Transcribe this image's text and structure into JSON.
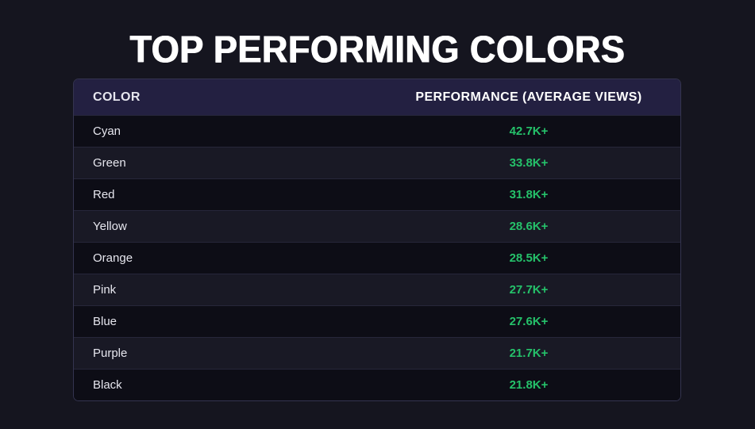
{
  "page": {
    "title": "TOP PERFORMING COLORS"
  },
  "table": {
    "columns": [
      {
        "label": "COLOR"
      },
      {
        "label": "PERFORMANCE (AVERAGE VIEWS)"
      }
    ],
    "rows": [
      {
        "color": "Cyan",
        "performance": "42.7K+"
      },
      {
        "color": "Green",
        "performance": "33.8K+"
      },
      {
        "color": "Red",
        "performance": "31.8K+"
      },
      {
        "color": "Yellow",
        "performance": "28.6K+"
      },
      {
        "color": "Orange",
        "performance": "28.5K+"
      },
      {
        "color": "Pink",
        "performance": "27.7K+"
      },
      {
        "color": "Blue",
        "performance": "27.6K+"
      },
      {
        "color": "Purple",
        "performance": "21.7K+"
      },
      {
        "color": "Black",
        "performance": "21.8K+"
      }
    ]
  },
  "colors": {
    "background": "#15151f",
    "header_bg": "#232041",
    "row_dark": "#0d0d16",
    "row_light": "#191925",
    "row_line": "#26263a",
    "table_border": "#34344f",
    "value_green": "#25c16a",
    "row_text": "#e6e6ee",
    "title_text": "#ffffff"
  },
  "chart_data": {
    "type": "table",
    "title": "TOP PERFORMING COLORS",
    "columns": [
      "COLOR",
      "PERFORMANCE (AVERAGE VIEWS)"
    ],
    "categories": [
      "Cyan",
      "Green",
      "Red",
      "Yellow",
      "Orange",
      "Pink",
      "Blue",
      "Purple",
      "Black"
    ],
    "values": [
      42700,
      33800,
      31800,
      28600,
      28500,
      27700,
      27600,
      21700,
      21800
    ],
    "value_labels": [
      "42.7K+",
      "33.8K+",
      "31.8K+",
      "28.6K+",
      "28.5K+",
      "27.7K+",
      "27.6K+",
      "21.7K+",
      "21.8K+"
    ],
    "value_unit": "average views",
    "sort": "descending by performance (approx)"
  }
}
